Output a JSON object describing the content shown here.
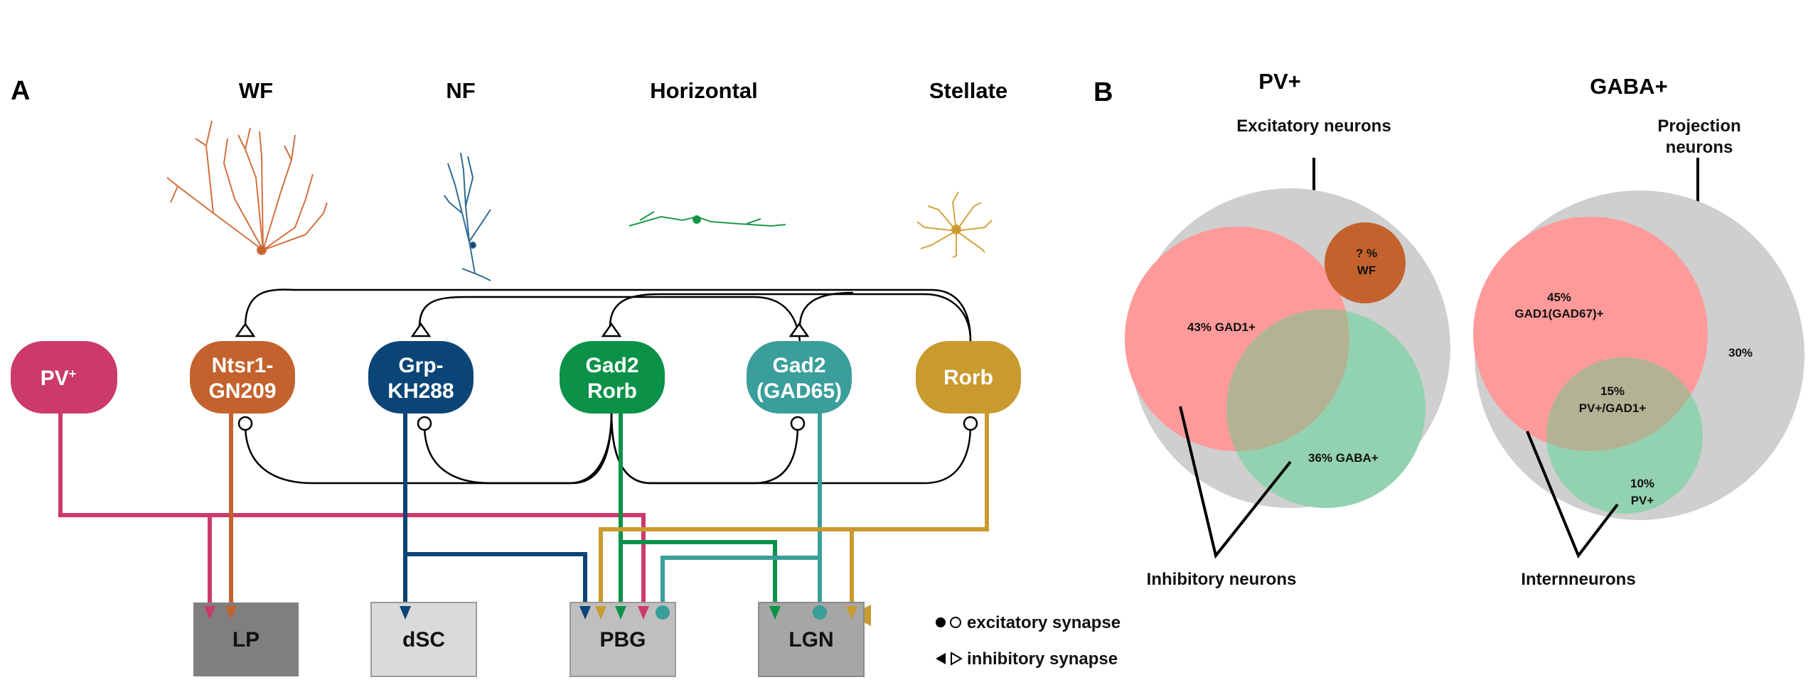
{
  "panelA": {
    "label": "A",
    "morph_headers": [
      "WF",
      "NF",
      "Horizontal",
      "Stellate"
    ],
    "neurons": {
      "pv": {
        "line1": "PV",
        "sup": "+",
        "color": "#cc3a6b"
      },
      "ntsr1": {
        "line1": "Ntsr1-",
        "line2": "GN209",
        "color": "#c4622d"
      },
      "grp": {
        "line1": "Grp-",
        "line2": "KH288",
        "color": "#0b4577"
      },
      "gad2rorb": {
        "line1": "Gad2",
        "line2": "Rorb",
        "color": "#0b9248"
      },
      "gad65": {
        "line1": "Gad2",
        "line2": "(GAD65)",
        "color": "#3a9e9b"
      },
      "rorb": {
        "line1": "Rorb",
        "color": "#c99a2e"
      }
    },
    "targets": {
      "lp": {
        "label": "LP",
        "color": "#7f7f7f"
      },
      "dsc": {
        "label": "dSC",
        "color": "#dadada"
      },
      "pbg": {
        "label": "PBG",
        "color": "#bfbfbf"
      },
      "lgn": {
        "label": "LGN",
        "color": "#a6a6a6"
      }
    },
    "legend": {
      "excitatory": "excitatory synapse",
      "inhibitory": "inhibitory synapse"
    }
  },
  "panelB": {
    "label": "B",
    "pv": {
      "title": "PV+",
      "excitatory_label": "Excitatory neurons",
      "inhibitory_label": "Inhibitory neurons",
      "gad1": "43% GAD1+",
      "gaba": "36% GABA+",
      "wf_line1": "? %",
      "wf_line2": "WF"
    },
    "gaba": {
      "title": "GABA+",
      "projection_line1": "Projection",
      "projection_line2": "neurons",
      "interneurons_label": "Internneurons",
      "gad1_line1": "45%",
      "gad1_line2": "GAD1(GAD67)+",
      "overlap_line1": "15%",
      "overlap_line2": "PV+/GAD1+",
      "pv_line1": "10%",
      "pv_line2": "PV+",
      "remainder": "30%"
    },
    "colors": {
      "outer": "#cfcfcf",
      "red": "#ff9a9a",
      "green": "#93d2b0",
      "overlap": "#b3b394",
      "wf": "#c4622d"
    }
  }
}
